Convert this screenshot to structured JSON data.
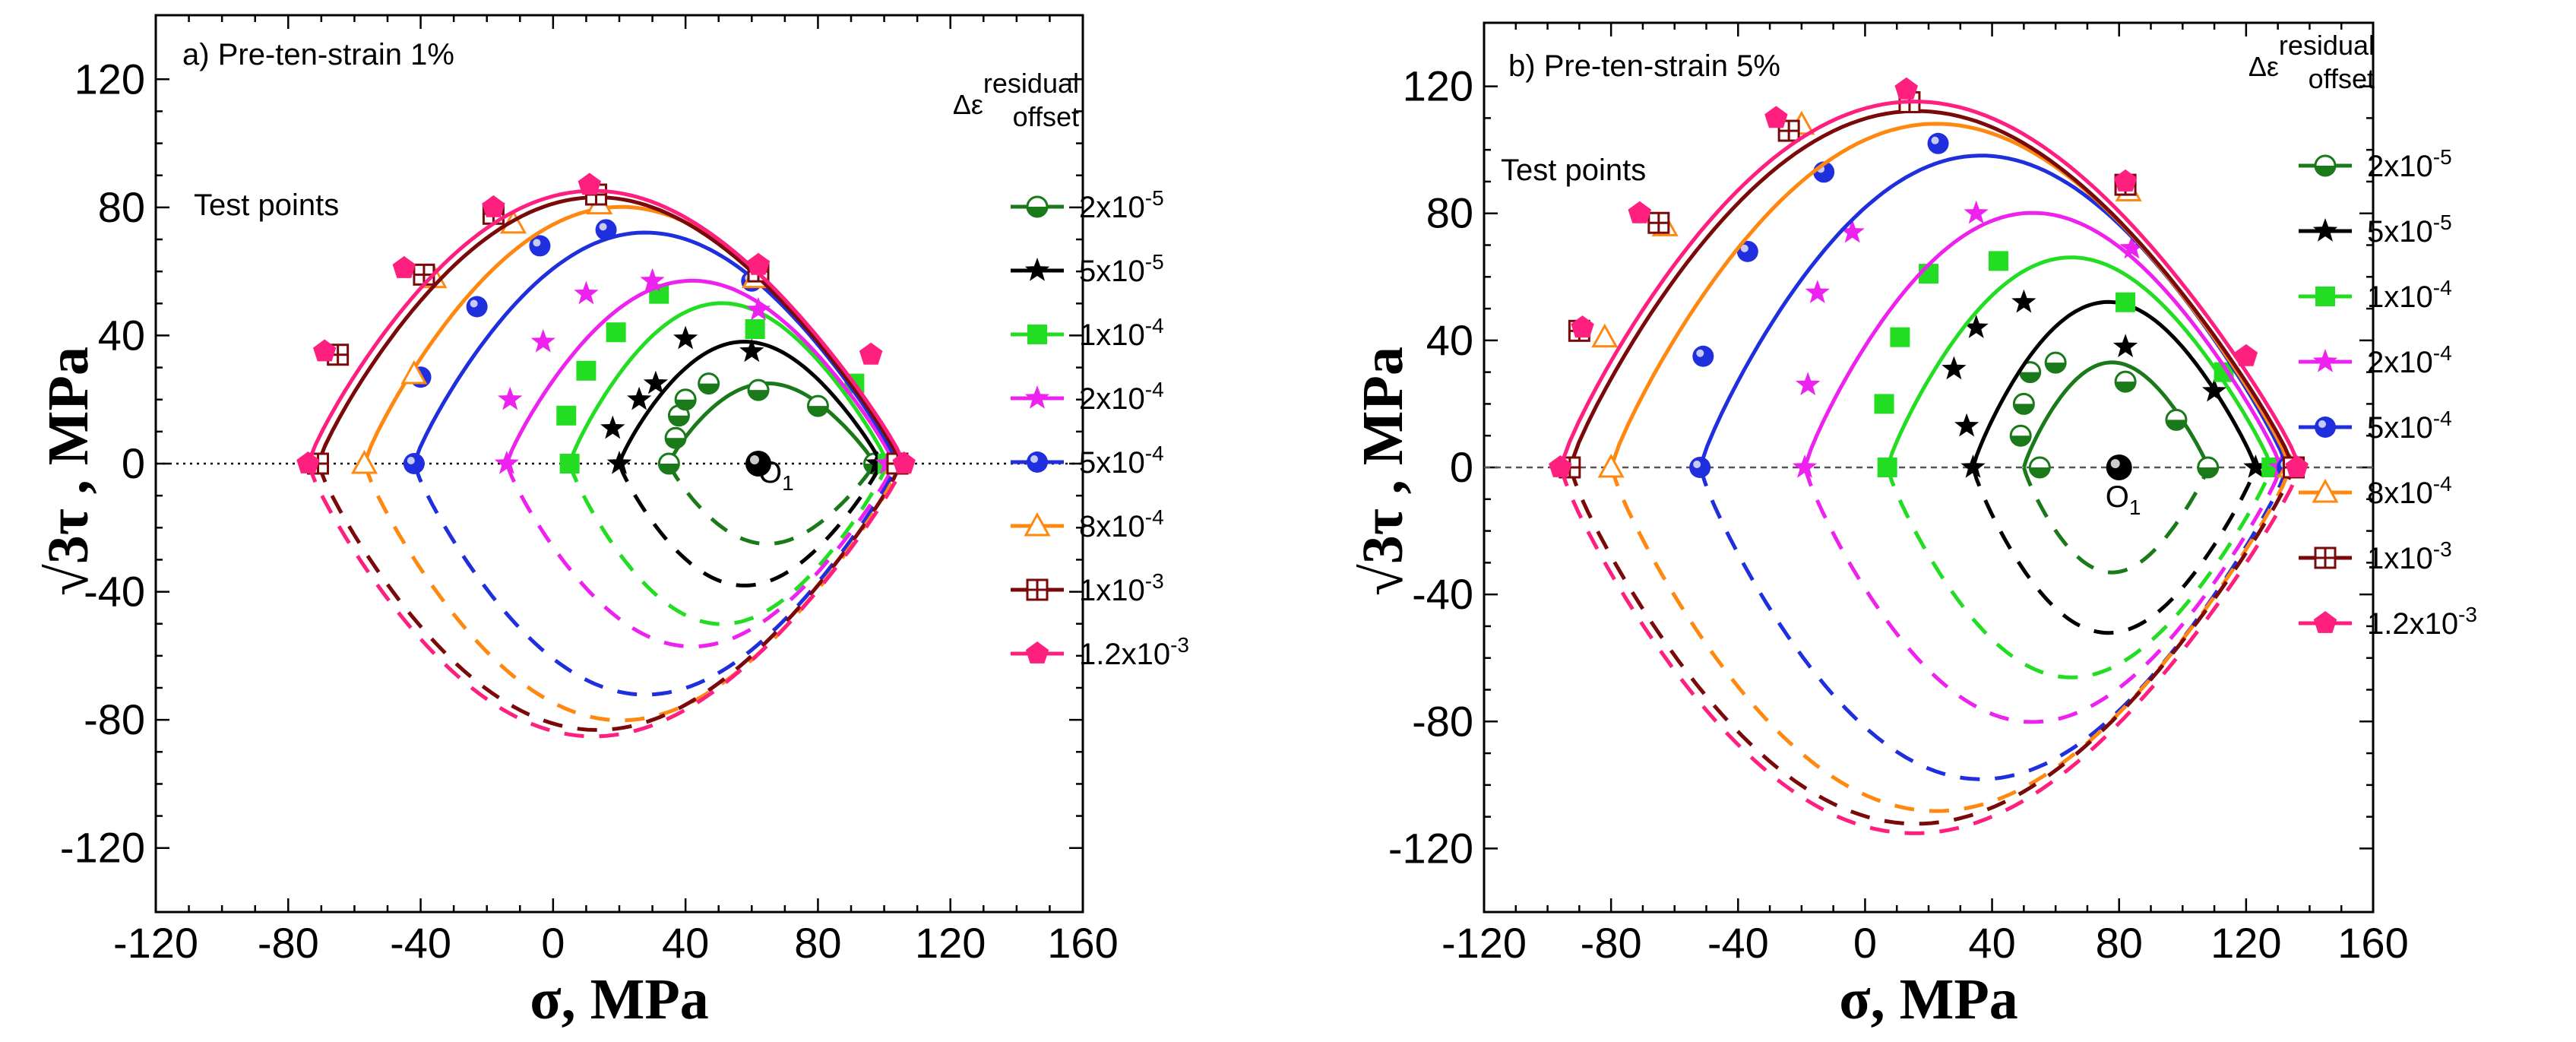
{
  "chart_data": [
    {
      "type": "line",
      "panel_id": "a)",
      "title": "Pre-ten-strain 1%",
      "annotation": "Test points",
      "xlabel": "σ,  MPa",
      "ylabel": "√3τ , MPa",
      "xlim": [
        -120,
        160
      ],
      "ylim": [
        -140,
        140
      ],
      "xticks": [
        "-120",
        "-80",
        "-40",
        "0",
        "40",
        "80",
        "120",
        "160"
      ],
      "yticks": [
        "120",
        "80",
        "40",
        "0",
        "-40",
        "-80",
        "-120"
      ],
      "origin_label": "O1",
      "origin_main": "O",
      "origin_sub": "1",
      "center": [
        62,
        0
      ],
      "legend_title_main": "Δε",
      "legend_title_sup": "residual",
      "legend_title_sub": "offset",
      "series": [
        {
          "name": "2x10-5",
          "label_main": "2x10",
          "label_exp": "-5",
          "color": "#1a7a1a",
          "marker": "halfcircle",
          "left": 35,
          "right": 97,
          "height": 25,
          "points": [
            [
              35,
              0
            ],
            [
              37,
              8
            ],
            [
              38,
              15
            ],
            [
              40,
              20
            ],
            [
              47,
              25
            ],
            [
              62,
              23
            ],
            [
              80,
              18
            ],
            [
              97,
              0
            ]
          ]
        },
        {
          "name": "5x10-5",
          "label_main": "5x10",
          "label_exp": "-5",
          "color": "#000000",
          "marker": "star",
          "left": 20,
          "right": 99,
          "height": 38,
          "points": [
            [
              20,
              0
            ],
            [
              18,
              11
            ],
            [
              26,
              20
            ],
            [
              31,
              25
            ],
            [
              40,
              39
            ],
            [
              60,
              35
            ],
            [
              98,
              0
            ]
          ]
        },
        {
          "name": "1x10-4",
          "label_main": "1x10",
          "label_exp": "-4",
          "color": "#22dd22",
          "marker": "square",
          "left": 5,
          "right": 101,
          "height": 50,
          "points": [
            [
              5,
              0
            ],
            [
              4,
              15
            ],
            [
              10,
              29
            ],
            [
              19,
              41
            ],
            [
              32,
              53
            ],
            [
              61,
              42
            ],
            [
              91,
              25
            ],
            [
              101,
              0
            ]
          ]
        },
        {
          "name": "2x10-4",
          "label_main": "2x10",
          "label_exp": "-4",
          "color": "#ee22ee",
          "marker": "star",
          "left": -14,
          "right": 103,
          "height": 57,
          "points": [
            [
              -14,
              0
            ],
            [
              -13,
              20
            ],
            [
              -3,
              38
            ],
            [
              10,
              53
            ],
            [
              30,
              57
            ],
            [
              62,
              48
            ],
            [
              101,
              0
            ]
          ]
        },
        {
          "name": "5x10-4",
          "label_main": "5x10",
          "label_exp": "-4",
          "color": "#1f2fdd",
          "marker": "ball",
          "left": -42,
          "right": 104,
          "height": 72,
          "points": [
            [
              -42,
              0
            ],
            [
              -40,
              27
            ],
            [
              -23,
              49
            ],
            [
              -4,
              68
            ],
            [
              16,
              73
            ],
            [
              60,
              57
            ],
            [
              104,
              0
            ]
          ]
        },
        {
          "name": "8x10-4",
          "label_main": "8x10",
          "label_exp": "-4",
          "color": "#ff8811",
          "marker": "triangle",
          "left": -57,
          "right": 105,
          "height": 80,
          "points": [
            [
              -57,
              0
            ],
            [
              -42,
              28
            ],
            [
              -36,
              58
            ],
            [
              -12,
              75
            ],
            [
              14,
              81
            ],
            [
              61,
              58
            ],
            [
              104,
              0
            ]
          ]
        },
        {
          "name": "1x10-3",
          "label_main": "1x10",
          "label_exp": "-3",
          "color": "#7a0a0a",
          "marker": "squareplus",
          "left": -71,
          "right": 105,
          "height": 83,
          "points": [
            [
              -71,
              0
            ],
            [
              -65,
              34
            ],
            [
              -39,
              59
            ],
            [
              -18,
              78
            ],
            [
              13,
              84
            ],
            [
              62,
              60
            ],
            [
              104,
              0
            ]
          ]
        },
        {
          "name": "1.2x10-3",
          "label_main": "1.2x10",
          "label_exp": "-3",
          "color": "#ff1f7f",
          "marker": "pentagon",
          "left": -74,
          "right": 106,
          "height": 85,
          "points": [
            [
              -74,
              0
            ],
            [
              -69,
              35
            ],
            [
              -45,
              61
            ],
            [
              -18,
              80
            ],
            [
              11,
              87
            ],
            [
              62,
              62
            ],
            [
              96,
              34
            ],
            [
              106,
              0
            ]
          ]
        }
      ]
    },
    {
      "type": "line",
      "panel_id": "b)",
      "title": "Pre-ten-strain 5%",
      "annotation": "Test points",
      "xlabel": "σ,  MPa",
      "ylabel": "√3τ , MPa",
      "xlim": [
        -120,
        160
      ],
      "ylim": [
        -140,
        140
      ],
      "xticks": [
        "-120",
        "-80",
        "-40",
        "0",
        "40",
        "80",
        "120",
        "160"
      ],
      "yticks": [
        "120",
        "80",
        "40",
        "0",
        "-40",
        "-80",
        "-120"
      ],
      "origin_label": "O1",
      "origin_main": "O",
      "origin_sub": "1",
      "center": [
        80,
        0
      ],
      "legend_title_main": "Δε",
      "legend_title_sup": "residual",
      "legend_title_sub": "offset",
      "series": [
        {
          "name": "2x10-5",
          "label_main": "2x10",
          "label_exp": "-5",
          "color": "#1a7a1a",
          "marker": "halfcircle",
          "left": 50,
          "right": 108,
          "height": 33,
          "points": [
            [
              55,
              0
            ],
            [
              49,
              10
            ],
            [
              50,
              20
            ],
            [
              52,
              30
            ],
            [
              60,
              33
            ],
            [
              82,
              27
            ],
            [
              98,
              15
            ],
            [
              108,
              0
            ]
          ]
        },
        {
          "name": "5x10-5",
          "label_main": "5x10",
          "label_exp": "-5",
          "color": "#000000",
          "marker": "star",
          "left": 34,
          "right": 123,
          "height": 52,
          "points": [
            [
              34,
              0
            ],
            [
              32,
              13
            ],
            [
              28,
              31
            ],
            [
              35,
              44
            ],
            [
              50,
              52
            ],
            [
              82,
              38
            ],
            [
              110,
              24
            ],
            [
              123,
              0
            ]
          ]
        },
        {
          "name": "1x10-4",
          "label_main": "1x10",
          "label_exp": "-4",
          "color": "#22dd22",
          "marker": "square",
          "left": 7,
          "right": 128,
          "height": 66,
          "points": [
            [
              7,
              0
            ],
            [
              6,
              20
            ],
            [
              11,
              41
            ],
            [
              20,
              61
            ],
            [
              42,
              65
            ],
            [
              82,
              52
            ],
            [
              113,
              30
            ],
            [
              128,
              0
            ]
          ]
        },
        {
          "name": "2x10-4",
          "label_main": "2x10",
          "label_exp": "-4",
          "color": "#ee22ee",
          "marker": "star",
          "left": -19,
          "right": 131,
          "height": 80,
          "points": [
            [
              -19,
              0
            ],
            [
              -18,
              26
            ],
            [
              -15,
              55
            ],
            [
              -4,
              74
            ],
            [
              35,
              80
            ],
            [
              84,
              69
            ],
            [
              131,
              0
            ]
          ]
        },
        {
          "name": "5x10-4",
          "label_main": "5x10",
          "label_exp": "-4",
          "color": "#1f2fdd",
          "marker": "ball",
          "left": -52,
          "right": 133,
          "height": 98,
          "points": [
            [
              -52,
              0
            ],
            [
              -51,
              35
            ],
            [
              -37,
              68
            ],
            [
              -13,
              93
            ],
            [
              23,
              102
            ],
            [
              133,
              0
            ]
          ]
        },
        {
          "name": "8x10-4",
          "label_main": "8x10",
          "label_exp": "-4",
          "color": "#ff8811",
          "marker": "triangle",
          "left": -80,
          "right": 134,
          "height": 108,
          "points": [
            [
              -80,
              0
            ],
            [
              -82,
              41
            ],
            [
              -63,
              76
            ],
            [
              -20,
              108
            ],
            [
              83,
              87
            ],
            [
              134,
              0
            ]
          ]
        },
        {
          "name": "1x10-3",
          "label_main": "1x10",
          "label_exp": "-3",
          "color": "#7a0a0a",
          "marker": "squareplus",
          "left": -93,
          "right": 135,
          "height": 112,
          "points": [
            [
              -93,
              0
            ],
            [
              -90,
              43
            ],
            [
              -65,
              77
            ],
            [
              -24,
              106
            ],
            [
              14,
              115
            ],
            [
              82,
              89
            ],
            [
              135,
              0
            ]
          ]
        },
        {
          "name": "1.2x10-3",
          "label_main": "1.2x10",
          "label_exp": "-3",
          "color": "#ff1f7f",
          "marker": "pentagon",
          "left": -96,
          "right": 137,
          "height": 115,
          "points": [
            [
              -96,
              0
            ],
            [
              -89,
              44
            ],
            [
              -71,
              80
            ],
            [
              -28,
              110
            ],
            [
              13,
              119
            ],
            [
              82,
              90
            ],
            [
              120,
              35
            ],
            [
              136,
              0
            ]
          ]
        }
      ]
    }
  ]
}
